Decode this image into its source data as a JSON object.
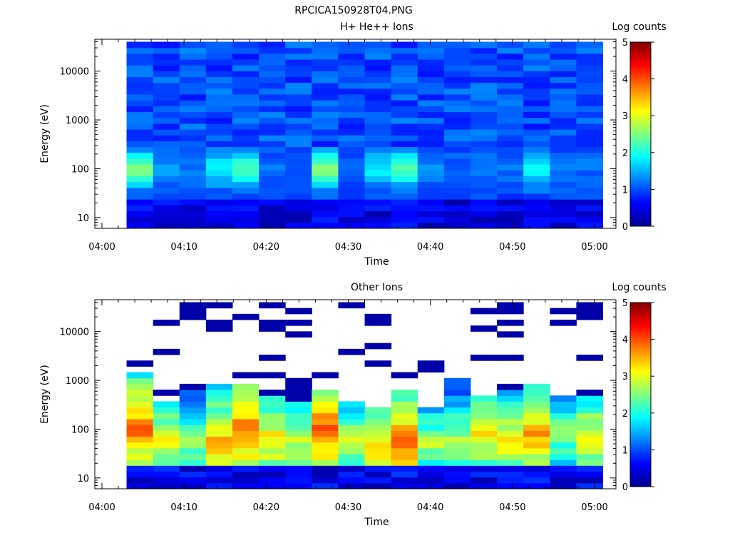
{
  "figure_title": "RPCICA150928T04.PNG",
  "chart_data": [
    {
      "type": "heatmap",
      "title": "H+ He++ Ions",
      "xlabel": "Time",
      "ylabel": "Energy (eV)",
      "y_scale": "log",
      "ylim": [
        6,
        45000
      ],
      "x_ticks": [
        "04:00",
        "04:10",
        "04:20",
        "04:30",
        "04:40",
        "04:50",
        "05:00"
      ],
      "y_ticks": [
        "10",
        "100",
        "1000",
        "10000"
      ],
      "colorbar": {
        "label": "Log counts",
        "range": [
          0,
          5
        ],
        "ticks": [
          "0",
          "1",
          "2",
          "3",
          "4",
          "5"
        ]
      },
      "time_range": [
        "04:03",
        "05:01"
      ],
      "energy_range": [
        6,
        40000
      ],
      "columns": 18,
      "peak_log_counts_by_column": [
        2.3,
        1.2,
        1.1,
        1.7,
        2.1,
        1.0,
        0.9,
        2.4,
        1.0,
        1.6,
        2.1,
        1.2,
        1.0,
        1.1,
        1.0,
        1.8,
        1.1,
        1.0
      ],
      "grid": false
    },
    {
      "type": "heatmap",
      "title": "Other Ions",
      "xlabel": "Time",
      "ylabel": "Energy (eV)",
      "y_scale": "log",
      "ylim": [
        6,
        45000
      ],
      "x_ticks": [
        "04:00",
        "04:10",
        "04:20",
        "04:30",
        "04:40",
        "04:50",
        "05:00"
      ],
      "y_ticks": [
        "10",
        "100",
        "1000",
        "10000"
      ],
      "colorbar": {
        "label": "Log counts",
        "range": [
          0,
          5
        ],
        "ticks": [
          "0",
          "1",
          "2",
          "3",
          "4",
          "5"
        ]
      },
      "time_range": [
        "04:03",
        "05:01"
      ],
      "energy_range": [
        6,
        40000
      ],
      "columns": 18,
      "continuum_top_energy_by_column": [
        1600,
        350,
        600,
        800,
        900,
        550,
        420,
        650,
        350,
        280,
        700,
        300,
        1000,
        500,
        650,
        850,
        550,
        500
      ],
      "peak_log_counts_by_column": [
        3.8,
        3.0,
        2.6,
        3.5,
        3.9,
        3.3,
        3.0,
        3.9,
        2.9,
        3.4,
        3.8,
        2.7,
        2.8,
        3.2,
        3.2,
        3.6,
        2.6,
        3.1
      ],
      "peak_energy_by_column": [
        100,
        60,
        50,
        50,
        100,
        60,
        60,
        100,
        50,
        50,
        60,
        50,
        60,
        80,
        60,
        80,
        80,
        70
      ],
      "grid": false
    }
  ]
}
